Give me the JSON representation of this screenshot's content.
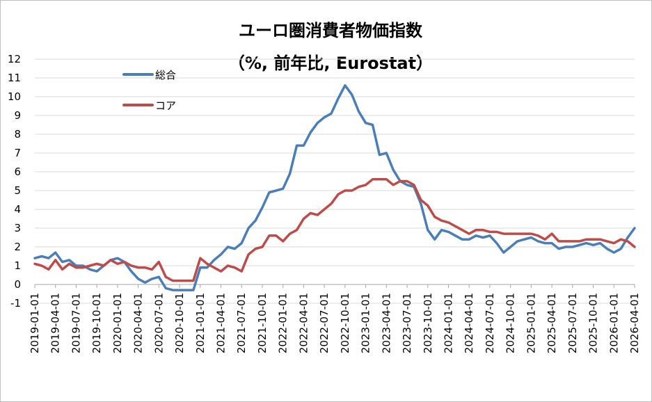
{
  "chart_data": {
    "type": "line",
    "title": "ユーロ圏消費者物価指数",
    "subtitle": "（%, 前年比, Eurostat）",
    "xlabel": "",
    "ylabel": "",
    "ylim": [
      -1,
      12
    ],
    "y_ticks": [
      "-1",
      "0",
      "1",
      "2",
      "3",
      "4",
      "5",
      "6",
      "7",
      "8",
      "9",
      "10",
      "11",
      "12"
    ],
    "x_tick_labels": [
      "2019-01-01",
      "2019-04-01",
      "2019-07-01",
      "2019-10-01",
      "2020-01-01",
      "2020-04-01",
      "2020-07-01",
      "2020-10-01",
      "2021-01-01",
      "2021-04-01",
      "2021-07-01",
      "2021-10-01",
      "2022-01-01",
      "2022-04-01",
      "2022-07-01",
      "2022-10-01",
      "2023-01-01",
      "2023-04-01",
      "2023-07-01",
      "2023-10-01",
      "2024-01-01",
      "2024-04-01",
      "2024-07-01",
      "2024-10-01",
      "2025-01-01",
      "2025-04-01",
      "2025-07-01",
      "2025-10-01",
      "2026-01-01",
      "2026-04-01"
    ],
    "x_start": "2019-01",
    "grid": true,
    "legend": "top-left",
    "series": [
      {
        "name": "総合",
        "color": "#4a7ebb",
        "values": [
          1.4,
          1.5,
          1.4,
          1.7,
          1.2,
          1.3,
          1.0,
          1.0,
          0.8,
          0.7,
          1.0,
          1.3,
          1.4,
          1.2,
          0.7,
          0.3,
          0.1,
          0.3,
          0.4,
          -0.2,
          -0.3,
          -0.3,
          -0.3,
          -0.3,
          0.9,
          0.9,
          1.3,
          1.6,
          2.0,
          1.9,
          2.2,
          3.0,
          3.4,
          4.1,
          4.9,
          5.0,
          5.1,
          5.9,
          7.4,
          7.4,
          8.1,
          8.6,
          8.9,
          9.1,
          9.9,
          10.6,
          10.1,
          9.2,
          8.6,
          8.5,
          6.9,
          7.0,
          6.1,
          5.5,
          5.3,
          5.2,
          4.3,
          2.9,
          2.4,
          2.9,
          2.8,
          2.6,
          2.4,
          2.4,
          2.6,
          2.5,
          2.6,
          2.2,
          1.7,
          2.0,
          2.3,
          2.4,
          2.5,
          2.3,
          2.2,
          2.2,
          1.9,
          2.0,
          2.0,
          2.1,
          2.2,
          2.1,
          2.2,
          1.9,
          1.7,
          1.9,
          2.5,
          3.0
        ]
      },
      {
        "name": "コア",
        "color": "#be4b48",
        "values": [
          1.1,
          1.0,
          0.8,
          1.3,
          0.8,
          1.1,
          0.9,
          0.9,
          1.0,
          1.1,
          1.0,
          1.3,
          1.1,
          1.2,
          1.0,
          0.9,
          0.9,
          0.8,
          1.2,
          0.4,
          0.2,
          0.2,
          0.2,
          0.2,
          1.4,
          1.1,
          0.9,
          0.7,
          1.0,
          0.9,
          0.7,
          1.6,
          1.9,
          2.0,
          2.6,
          2.6,
          2.3,
          2.7,
          2.9,
          3.5,
          3.8,
          3.7,
          4.0,
          4.3,
          4.8,
          5.0,
          5.0,
          5.2,
          5.3,
          5.6,
          5.6,
          5.6,
          5.3,
          5.5,
          5.5,
          5.3,
          4.5,
          4.2,
          3.6,
          3.4,
          3.3,
          3.1,
          2.9,
          2.7,
          2.9,
          2.9,
          2.8,
          2.8,
          2.7,
          2.7,
          2.7,
          2.7,
          2.7,
          2.6,
          2.4,
          2.7,
          2.3,
          2.3,
          2.3,
          2.3,
          2.4,
          2.4,
          2.4,
          2.3,
          2.2,
          2.4,
          2.3,
          2.0
        ]
      }
    ]
  }
}
